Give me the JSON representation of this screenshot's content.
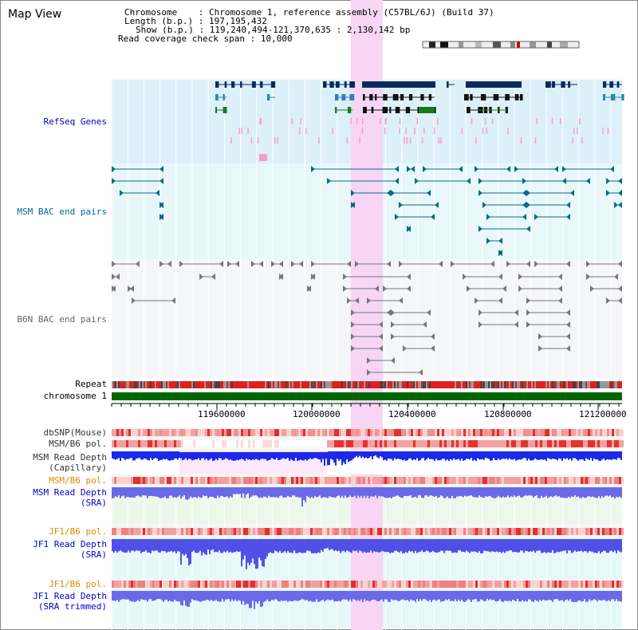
{
  "title": "Map View",
  "info": {
    "chromosome_label": "Chromosome",
    "chromosome_value": "Chromosome 1, reference assembly (C57BL/6J) (Build 37)",
    "length_label": "Length (b.p.)",
    "length_value": "197,195,432",
    "show_label": "Show (b.p.)",
    "show_value": "119,240,494-121,370,635 : 2,130,142 bp",
    "span_label": "Read coverage check span",
    "span_value": "10,000"
  },
  "tracks": {
    "refseq": "RefSeq Genes",
    "msm_bac": "MSM BAC end pairs",
    "b6n_bac": "B6N BAC end pairs",
    "repeat": "Repeat",
    "chromosome": "chromosome 1",
    "dbsnp": "dbSNP(Mouse)",
    "msm_b6_pol_1": "MSM/B6 pol.",
    "msm_depth_cap_1": "MSM Read Depth",
    "msm_depth_cap_2": "(Capillary)",
    "msm_b6_pol_2": "MSM/B6 pol.",
    "msm_depth_sra_1": "MSM Read Depth",
    "msm_depth_sra_2": "(SRA)",
    "jf1_b6_pol_1": "JF1/B6 pol.",
    "jf1_depth_sra_1": "JF1 Read Depth",
    "jf1_depth_sra_2": "(SRA)",
    "jf1_b6_pol_2": "JF1/B6 pol.",
    "jf1_depth_trim_1": "JF1 Read Depth",
    "jf1_depth_trim_2": "(SRA trimmed)"
  },
  "axis": {
    "ticks": [
      "119600000",
      "120000000",
      "120400000",
      "120800000",
      "121200000"
    ]
  },
  "colors": {
    "refseq_label": "#0000cc",
    "msm_bac_label": "#006699",
    "b6n_label": "#666666",
    "orange_label": "#e08a00",
    "blue_label": "#0000cc",
    "highlight": "#f6d6f4",
    "chromosome_bar": "#006600"
  }
}
